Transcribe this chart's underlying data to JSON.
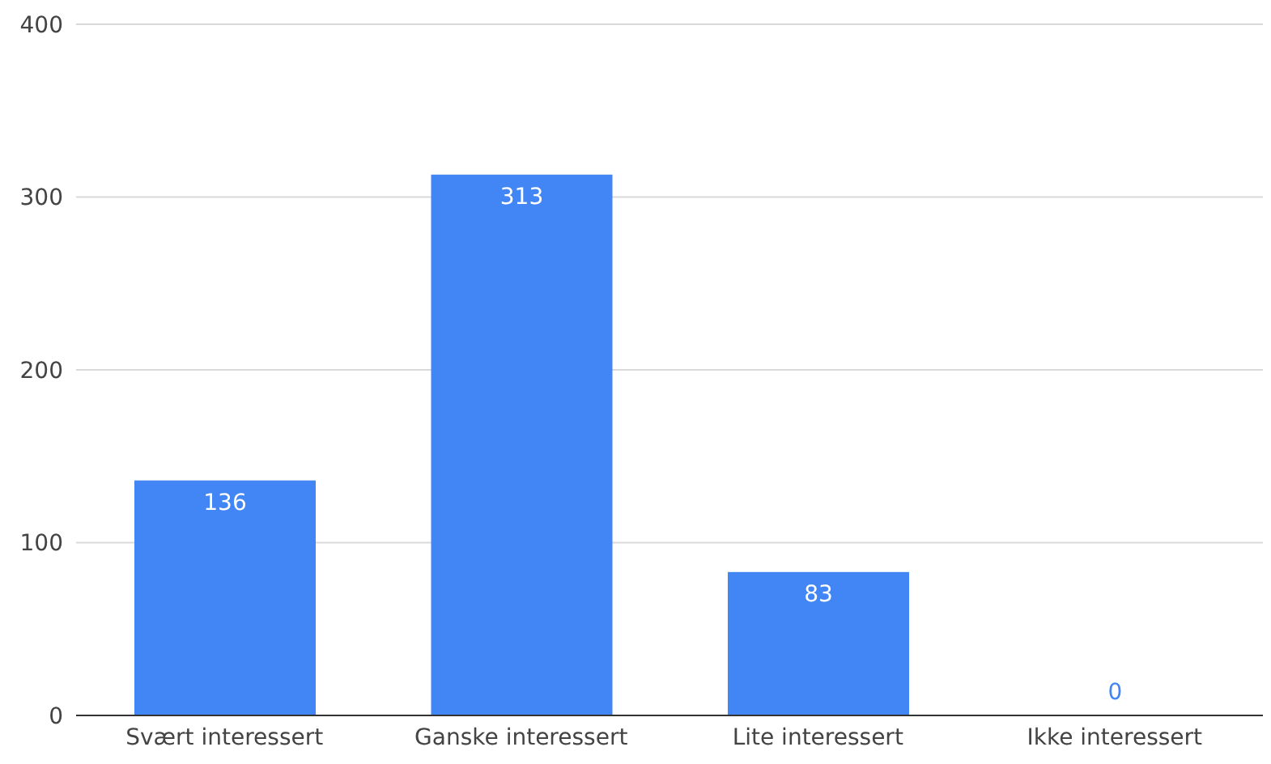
{
  "chart_data": {
    "type": "bar",
    "categories": [
      "Svært interessert",
      "Ganske interessert",
      "Lite interessert",
      "Ikke interessert"
    ],
    "values": [
      136,
      313,
      83,
      0
    ],
    "color": "#4285f4",
    "ylim": [
      0,
      400
    ],
    "yticks": [
      0,
      100,
      200,
      300,
      400
    ],
    "grid": "y",
    "data_labels": true
  }
}
